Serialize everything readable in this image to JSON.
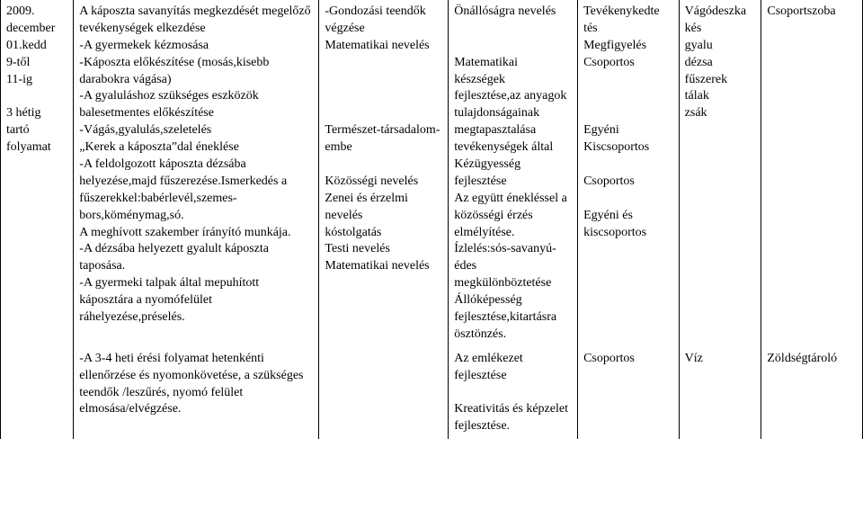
{
  "row1": {
    "c0": "2009.\ndecember\n01.kedd\n9-től\n11-ig\n\n3 hétig\ntartó\nfolyamat",
    "c1": "A káposzta savanyítás megkezdését megelőző tevékenységek elkezdése\n-A gyermekek kézmosása\n-Káposzta előkészítése (mosás,kisebb darabokra vágása)\n-A gyaluláshoz szükséges eszközök balesetmentes előkészítése\n-Vágás,gyalulás,szeletelés\n„Kerek a káposzta”dal éneklése\n-A feldolgozott káposzta dézsába helyezése,majd fűszerezése.Ismerkedés a fűszerekkel:babérlevél,szemes-bors,köménymag,só.\nA meghívott szakember írányító munkája.\n-A dézsába helyezett gyalult káposzta taposása.\n-A gyermeki talpak által mepuhított káposztára a nyomófelület ráhelyezése,préselés.",
    "c2": "-Gondozási teendők végzése\nMatematikai nevelés\n\n\n\n\nTermészet-társadalom-embe\n\nKözösségi nevelés\nZenei és érzelmi nevelés\n kóstolgatás\nTesti nevelés\nMatematikai nevelés",
    "c3": "Önállóságra nevelés\n\n\nMatematikai készségek fejlesztése,az anyagok tulajdonságainak megtapasztalása tevékenységek által\nKézügyesség fejlesztése\nAz együtt énekléssel a közösségi érzés elmélyítése.\nÍzlelés:sós-savanyú-édes megkülönböztetése\nÁllóképesség fejlesztése,kitartásra ösztönzés.",
    "c4": "Tevékenykedte\ntés\nMegfigyelés\nCsoportos\n\n\n\nEgyéni\nKiscsoportos\n\nCsoportos\n\nEgyéni és\nkiscsoportos",
    "c5": "Vágódeszka\nkés\ngyalu\ndézsa\nfűszerek\ntálak\nzsák",
    "c6": "Csoportszoba"
  },
  "row2": {
    "c0": "",
    "c1": "-A 3-4 heti érési folyamat hetenkénti ellenőrzése és nyomonkövetése, a szükséges teendők /leszűrés, nyomó felület elmosása/elvégzése.",
    "c2": "",
    "c3": "Az emlékezet fejlesztése\n\nKreativitás és képzelet fejlesztése.",
    "c4": "Csoportos",
    "c5": "Víz",
    "c6": "Zöldségtároló"
  }
}
